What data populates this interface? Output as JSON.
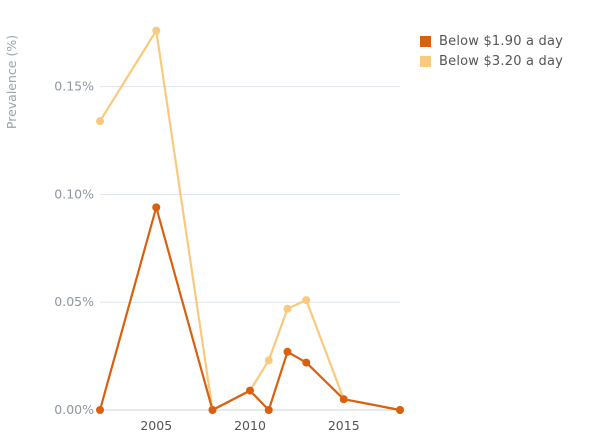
{
  "chart_data": {
    "type": "line",
    "title": "",
    "xlabel": "",
    "ylabel": "Prevalence (%)",
    "xlim": [
      2002,
      2018
    ],
    "ylim": [
      0,
      0.18
    ],
    "x_ticks": [
      2005,
      2010,
      2015
    ],
    "y_ticks": [
      0,
      0.05,
      0.1,
      0.15
    ],
    "y_tick_labels": [
      "0.00%",
      "0.05%",
      "0.10%",
      "0.15%"
    ],
    "grid": "horizontal",
    "legend_position": "top-right",
    "series": [
      {
        "name": "Below $1.90 a day",
        "color": "#d9600f",
        "x": [
          2002,
          2005,
          2008,
          2010,
          2011,
          2012,
          2013,
          2015,
          2018
        ],
        "y": [
          0.0,
          0.094,
          0.0,
          0.009,
          0.0,
          0.027,
          0.022,
          0.005,
          0.0
        ]
      },
      {
        "name": "Below $3.20 a day",
        "color": "#f9c97d",
        "x": [
          2002,
          2005,
          2008,
          2010,
          2011,
          2012,
          2013,
          2015,
          2018
        ],
        "y": [
          0.134,
          0.176,
          0.0,
          0.009,
          0.023,
          0.047,
          0.051,
          0.005,
          0.0
        ]
      }
    ]
  }
}
